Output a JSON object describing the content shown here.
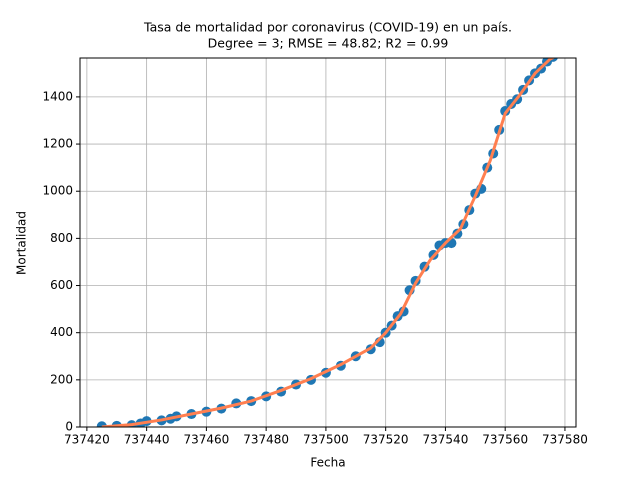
{
  "chart_data": {
    "type": "scatter",
    "title": "Tasa de mortalidad por coronavirus (COVID-19) en un país.",
    "subtitle": "Degree = 3; RMSE = 48.82; R2 = 0.99",
    "x_label": "Fecha",
    "y_label": "Mortalidad",
    "xlim": [
      737417.7,
      737583.7
    ],
    "ylim": [
      0,
      1565
    ],
    "xticks": [
      737420,
      737440,
      737460,
      737480,
      737500,
      737520,
      737540,
      737560,
      737580
    ],
    "yticks": [
      0,
      200,
      400,
      600,
      800,
      1000,
      1200,
      1400
    ],
    "grid": true,
    "series": [
      {
        "type": "scatter",
        "color": "#1f77b4",
        "x": [
          737425,
          737430,
          737435,
          737438,
          737440,
          737445,
          737448,
          737450,
          737455,
          737460,
          737465,
          737470,
          737475,
          737480,
          737485,
          737490,
          737495,
          737500,
          737505,
          737510,
          737515,
          737518,
          737520,
          737522,
          737524,
          737526,
          737528,
          737530,
          737533,
          737536,
          737538,
          737540,
          737542,
          737544,
          737546,
          737548,
          737550,
          737552,
          737554,
          737556,
          737558,
          737560,
          737562,
          737564,
          737566,
          737568,
          737570,
          737572,
          737574,
          737576
        ],
        "values": [
          3,
          5,
          8,
          15,
          25,
          28,
          35,
          45,
          55,
          65,
          78,
          100,
          110,
          130,
          150,
          180,
          200,
          230,
          260,
          300,
          330,
          360,
          400,
          430,
          470,
          490,
          580,
          620,
          680,
          730,
          770,
          780,
          780,
          820,
          860,
          920,
          990,
          1010,
          1100,
          1160,
          1260,
          1340,
          1370,
          1390,
          1430,
          1470,
          1500,
          1520,
          1550,
          1570
        ]
      },
      {
        "type": "line",
        "color": "#ff7f50",
        "x": [
          737425,
          737435,
          737445,
          737455,
          737465,
          737475,
          737485,
          737495,
          737505,
          737515,
          737520,
          737525,
          737530,
          737535,
          737540,
          737545,
          737550,
          737555,
          737560,
          737565,
          737570,
          737575,
          737578
        ],
        "values": [
          0,
          10,
          30,
          55,
          80,
          110,
          155,
          205,
          265,
          335,
          400,
          480,
          610,
          710,
          780,
          840,
          980,
          1130,
          1330,
          1410,
          1500,
          1560,
          1580
        ]
      }
    ]
  }
}
